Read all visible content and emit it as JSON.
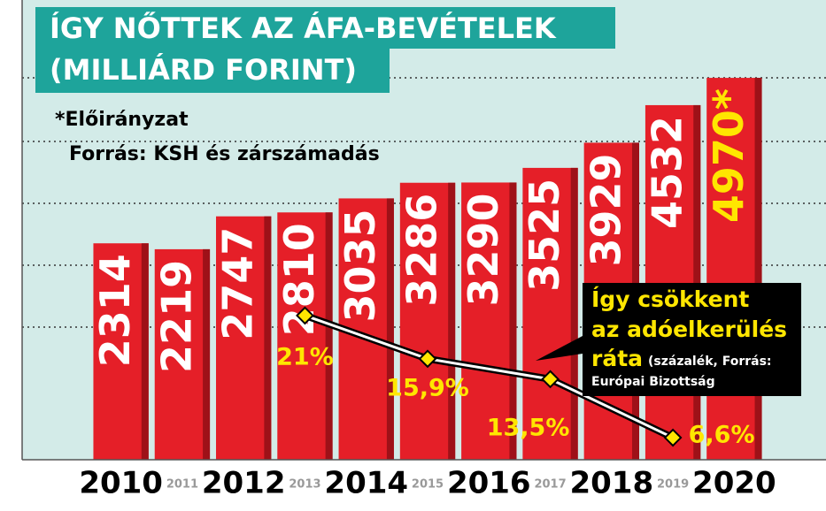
{
  "chart_data": {
    "type": "bar",
    "title": [
      "ÍGY NŐTTEK AZ ÁFA-BEVÉTELEK",
      "(MILLIÁRD FORINT)"
    ],
    "notes": [
      "*Előirányzat",
      "Forrás: KSH és zárszámadás"
    ],
    "categories": [
      "2010",
      "2011",
      "2012",
      "2013",
      "2014",
      "2015",
      "2016",
      "2017",
      "2018",
      "2019",
      "2020"
    ],
    "series": [
      {
        "type": "bar",
        "color": "#e51f28",
        "values": [
          2314,
          2219,
          2747,
          2810,
          3035,
          3286,
          3290,
          3525,
          3929,
          4532,
          4970
        ],
        "value_labels": [
          "2314",
          "2219",
          "2747",
          "2810",
          "3035",
          "3286",
          "3290",
          "3525",
          "3929",
          "4532",
          "4970*"
        ]
      },
      {
        "type": "line",
        "axis": "y2",
        "color": "#ffe600",
        "x": [
          "2013",
          "2015",
          "2017",
          "2019"
        ],
        "values": [
          21,
          15.9,
          13.5,
          6.6
        ],
        "value_labels": [
          "21%",
          "15,9%",
          "13,5%",
          "6,6%"
        ]
      }
    ],
    "annotation": [
      "Így csökkent",
      "az adóelkerülés",
      "ráta",
      "(százalék, Forrás:",
      "Európai Bizottság"
    ],
    "ylim": [
      -1160,
      6220
    ],
    "y2lim": [
      4,
      58.2
    ]
  }
}
